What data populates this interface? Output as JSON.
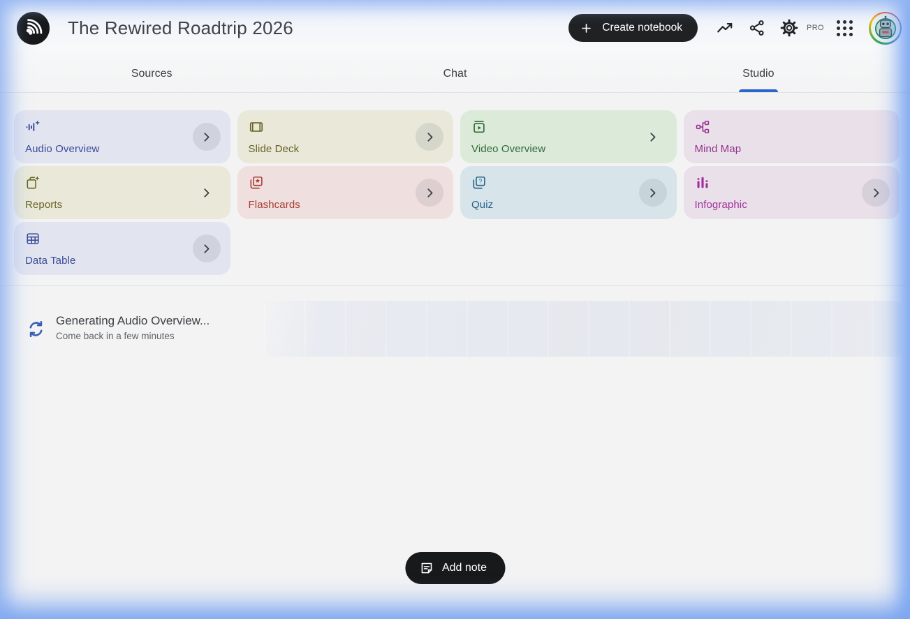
{
  "app": {
    "title": "The Rewired Roadtrip 2026"
  },
  "header": {
    "create_notebook_label": "Create notebook",
    "pro_badge": "PRO",
    "icon_names": [
      "notebooklm-logo-icon",
      "plus-icon",
      "trending-up-icon",
      "share-icon",
      "settings-gear-icon",
      "apps-grid-icon",
      "avatar"
    ]
  },
  "tabs": [
    {
      "label": "Sources",
      "active": false
    },
    {
      "label": "Chat",
      "active": false
    },
    {
      "label": "Studio",
      "active": true
    }
  ],
  "colors": {
    "tab_active_underline": "#2a67cd",
    "edge_glow_blue": "#7ba6f2",
    "pill_button_bg": "#1f2123",
    "content_bg": "#f3f3f4"
  },
  "studio": {
    "cards": [
      {
        "label": "Audio Overview",
        "icon": "audio-waveform-sparkle-icon",
        "bg": "#e2e4ef",
        "fg": "#3a4b97",
        "chevron": "circle"
      },
      {
        "label": "Slide Deck",
        "icon": "slide-deck-icon",
        "bg": "#e9e8d9",
        "fg": "#6a6325",
        "chevron": "circle"
      },
      {
        "label": "Video Overview",
        "icon": "video-overview-icon",
        "bg": "#dcead9",
        "fg": "#2f6b3a",
        "chevron": "plain"
      },
      {
        "label": "Mind Map",
        "icon": "mind-map-icon",
        "bg": "#e9e0e9",
        "fg": "#93308f",
        "chevron": "none"
      },
      {
        "label": "Reports",
        "icon": "reports-icon",
        "bg": "#e9e8d9",
        "fg": "#6a6325",
        "chevron": "plain"
      },
      {
        "label": "Flashcards",
        "icon": "flashcards-icon",
        "bg": "#f0dfdf",
        "fg": "#a63c31",
        "chevron": "circle"
      },
      {
        "label": "Quiz",
        "icon": "quiz-icon",
        "bg": "#d7e5ea",
        "fg": "#23608a",
        "chevron": "circle"
      },
      {
        "label": "Infographic",
        "icon": "infographic-icon",
        "bg": "#e9e0e9",
        "fg": "#a1309b",
        "chevron": "circle"
      },
      {
        "label": "Data Table",
        "icon": "data-table-icon",
        "bg": "#e2e4ef",
        "fg": "#3a4b97",
        "chevron": "circle"
      }
    ],
    "generating": {
      "title": "Generating Audio Overview...",
      "subtitle": "Come back in a few minutes",
      "icon": "sync-progress-icon"
    }
  },
  "footer": {
    "add_note_label": "Add note",
    "icon": "note-icon"
  }
}
